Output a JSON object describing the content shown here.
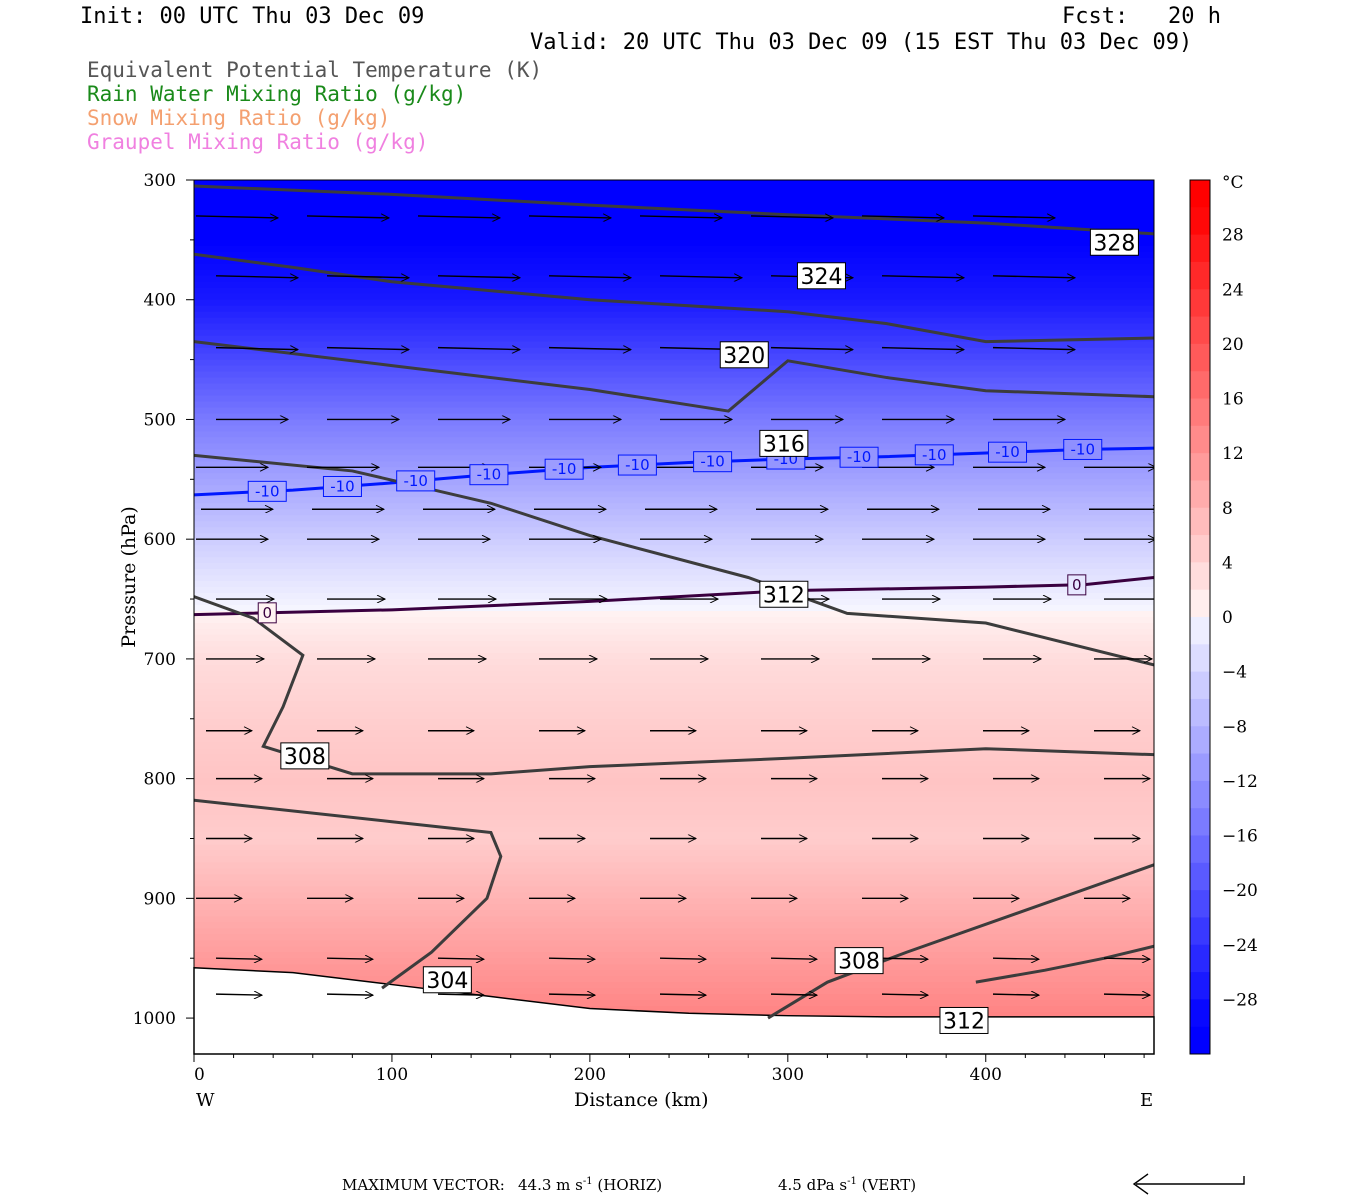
{
  "header": {
    "init": "Init: 00 UTC Thu 03 Dec 09",
    "fcst": "Fcst:   20 h",
    "valid": "Valid: 20 UTC Thu 03 Dec 09 (15 EST Thu 03 Dec 09)"
  },
  "fields": [
    {
      "label": "Equivalent Potential Temperature (K)",
      "color": "#555555"
    },
    {
      "label": "Rain Water Mixing Ratio (g/kg)",
      "color": "#1a8a1a"
    },
    {
      "label": "Snow Mixing Ratio (g/kg)",
      "color": "#f4a070"
    },
    {
      "label": "Graupel Mixing Ratio (g/kg)",
      "color": "#f080e0"
    }
  ],
  "footer": {
    "max_vector_label": "MAXIMUM VECTOR:",
    "horiz": "44.3 m s",
    "horiz_unit": "-1",
    "horiz_tag": "(HORIZ)",
    "vert": "4.5 dPa s",
    "vert_unit": "-1",
    "vert_tag": "(VERT)"
  },
  "chart_data": {
    "type": "heatmap",
    "xlabel": "Distance (km)",
    "ylabel": "Pressure (hPa)",
    "xlim": [
      0,
      485
    ],
    "ylim": [
      1030,
      300
    ],
    "xticks": [
      0,
      100,
      200,
      300,
      400
    ],
    "yticks": [
      300,
      400,
      500,
      600,
      700,
      800,
      900,
      1000
    ],
    "x_endpoints": {
      "left": "W",
      "right": "E"
    },
    "colorbar": {
      "unit": "°C",
      "ticks": [
        28,
        24,
        20,
        16,
        12,
        8,
        4,
        0,
        -4,
        -8,
        -12,
        -16,
        -20,
        -24,
        -28
      ],
      "levels": [
        -32,
        -30,
        -28,
        -26,
        -24,
        -22,
        -20,
        -18,
        -16,
        -14,
        -12,
        -10,
        -8,
        -6,
        -4,
        -2,
        0,
        2,
        4,
        6,
        8,
        10,
        12,
        14,
        16,
        18,
        20,
        22,
        24,
        26,
        28,
        30,
        32
      ]
    },
    "temperature_profile": [
      {
        "p": 300,
        "t": -32
      },
      {
        "p": 350,
        "t": -30
      },
      {
        "p": 400,
        "t": -27
      },
      {
        "p": 450,
        "t": -21
      },
      {
        "p": 500,
        "t": -15
      },
      {
        "p": 550,
        "t": -10
      },
      {
        "p": 600,
        "t": -5
      },
      {
        "p": 640,
        "t": -1.5
      },
      {
        "p": 670,
        "t": 1
      },
      {
        "p": 700,
        "t": 3
      },
      {
        "p": 760,
        "t": 5
      },
      {
        "p": 800,
        "t": 6
      },
      {
        "p": 850,
        "t": 5
      },
      {
        "p": 900,
        "t": 8
      },
      {
        "p": 950,
        "t": 11
      },
      {
        "p": 1000,
        "t": 14
      }
    ],
    "isotherms": [
      {
        "label": "-10",
        "color": "#0018ff",
        "points": [
          [
            0,
            563
          ],
          [
            50,
            559
          ],
          [
            100,
            553
          ],
          [
            150,
            546
          ],
          [
            200,
            540
          ],
          [
            250,
            536
          ],
          [
            300,
            533
          ],
          [
            350,
            531
          ],
          [
            400,
            528
          ],
          [
            450,
            525
          ],
          [
            485,
            524
          ]
        ],
        "label_x": [
          37,
          75,
          112,
          149,
          187,
          224,
          262,
          299,
          336,
          374,
          411,
          449
        ]
      },
      {
        "label": "0",
        "color": "#3a0040",
        "points": [
          [
            0,
            663
          ],
          [
            100,
            659
          ],
          [
            200,
            652
          ],
          [
            300,
            643
          ],
          [
            400,
            640
          ],
          [
            450,
            638
          ],
          [
            485,
            632
          ]
        ],
        "label_x": [
          37,
          446
        ]
      }
    ],
    "theta_e": [
      {
        "label": "328",
        "points": [
          [
            0,
            305
          ],
          [
            100,
            312
          ],
          [
            200,
            321
          ],
          [
            300,
            329
          ],
          [
            400,
            336
          ],
          [
            485,
            345
          ]
        ],
        "label_at": [
          465,
          352
        ]
      },
      {
        "label": "324",
        "points": [
          [
            0,
            362
          ],
          [
            50,
            373
          ],
          [
            100,
            385
          ],
          [
            200,
            400
          ],
          [
            300,
            410
          ],
          [
            350,
            420
          ],
          [
            400,
            435
          ],
          [
            485,
            432
          ]
        ],
        "label_at": [
          317,
          380
        ]
      },
      {
        "label": "320",
        "points": [
          [
            0,
            435
          ],
          [
            100,
            455
          ],
          [
            200,
            475
          ],
          [
            270,
            493
          ],
          [
            300,
            451
          ],
          [
            350,
            465
          ],
          [
            400,
            476
          ],
          [
            485,
            481
          ]
        ],
        "label_at": [
          278,
          446
        ]
      },
      {
        "label": "316",
        "points": [
          [
            0,
            530
          ],
          [
            80,
            543
          ],
          [
            150,
            570
          ],
          [
            200,
            597
          ],
          [
            280,
            632
          ],
          [
            330,
            662
          ],
          [
            400,
            670
          ],
          [
            485,
            705
          ]
        ],
        "label_at": [
          298,
          520
        ]
      },
      {
        "label": "312",
        "points": [
          [
            0,
            648
          ],
          [
            30,
            666
          ],
          [
            55,
            697
          ],
          [
            45,
            740
          ],
          [
            35,
            773
          ],
          [
            80,
            796
          ],
          [
            150,
            796
          ],
          [
            200,
            790
          ],
          [
            300,
            783
          ],
          [
            400,
            775
          ],
          [
            485,
            780
          ]
        ],
        "label_at": [
          298,
          646
        ]
      },
      {
        "label": "308",
        "points": [
          [
            0,
            818
          ],
          [
            100,
            836
          ],
          [
            150,
            845
          ],
          [
            155,
            865
          ],
          [
            148,
            900
          ],
          [
            120,
            945
          ],
          [
            95,
            975
          ]
        ],
        "label_at": [
          56,
          781
        ]
      },
      {
        "label": "304",
        "points": [
          [
            290,
            1000
          ],
          [
            320,
            970
          ],
          [
            360,
            945
          ],
          [
            420,
            910
          ],
          [
            485,
            872
          ]
        ],
        "label_at": [
          128,
          968
        ]
      },
      {
        "label": "312",
        "points": [
          [
            395,
            970
          ],
          [
            430,
            960
          ],
          [
            460,
            950
          ],
          [
            485,
            940
          ]
        ],
        "label_at": [
          389,
          1002
        ]
      },
      {
        "label": "308",
        "points": [],
        "label_at": [
          336,
          952
        ]
      }
    ],
    "wind_vector_levels_hPa": [
      330,
      380,
      440,
      500,
      540,
      575,
      600,
      650,
      700,
      760,
      800,
      850,
      900,
      950,
      980
    ]
  }
}
